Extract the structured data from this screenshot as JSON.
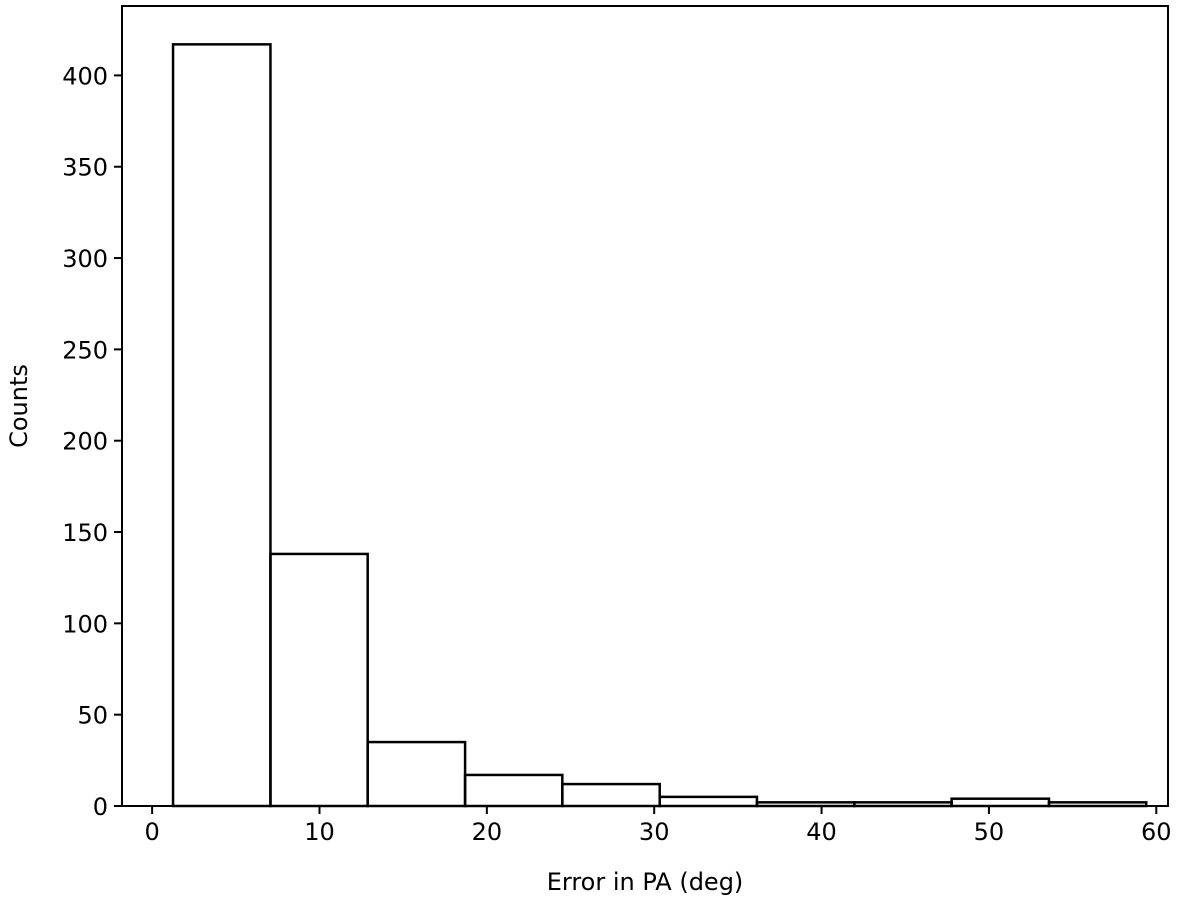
{
  "chart_data": {
    "type": "histogram",
    "xlabel": "Error in PA (deg)",
    "ylabel": "Counts",
    "bins": [
      1.25,
      7.07,
      12.88,
      18.7,
      24.51,
      30.33,
      36.14,
      41.96,
      47.77,
      53.59,
      59.4
    ],
    "values": [
      417,
      138,
      35,
      17,
      12,
      5,
      2,
      2,
      4,
      2
    ],
    "color": "#000000",
    "xlim": [
      -1.8,
      60.7
    ],
    "xticks": [
      0,
      10,
      20,
      30,
      40,
      50,
      60
    ],
    "ylim": [
      0,
      438
    ],
    "yticks": [
      0,
      50,
      100,
      150,
      200,
      250,
      300,
      350,
      400
    ]
  }
}
